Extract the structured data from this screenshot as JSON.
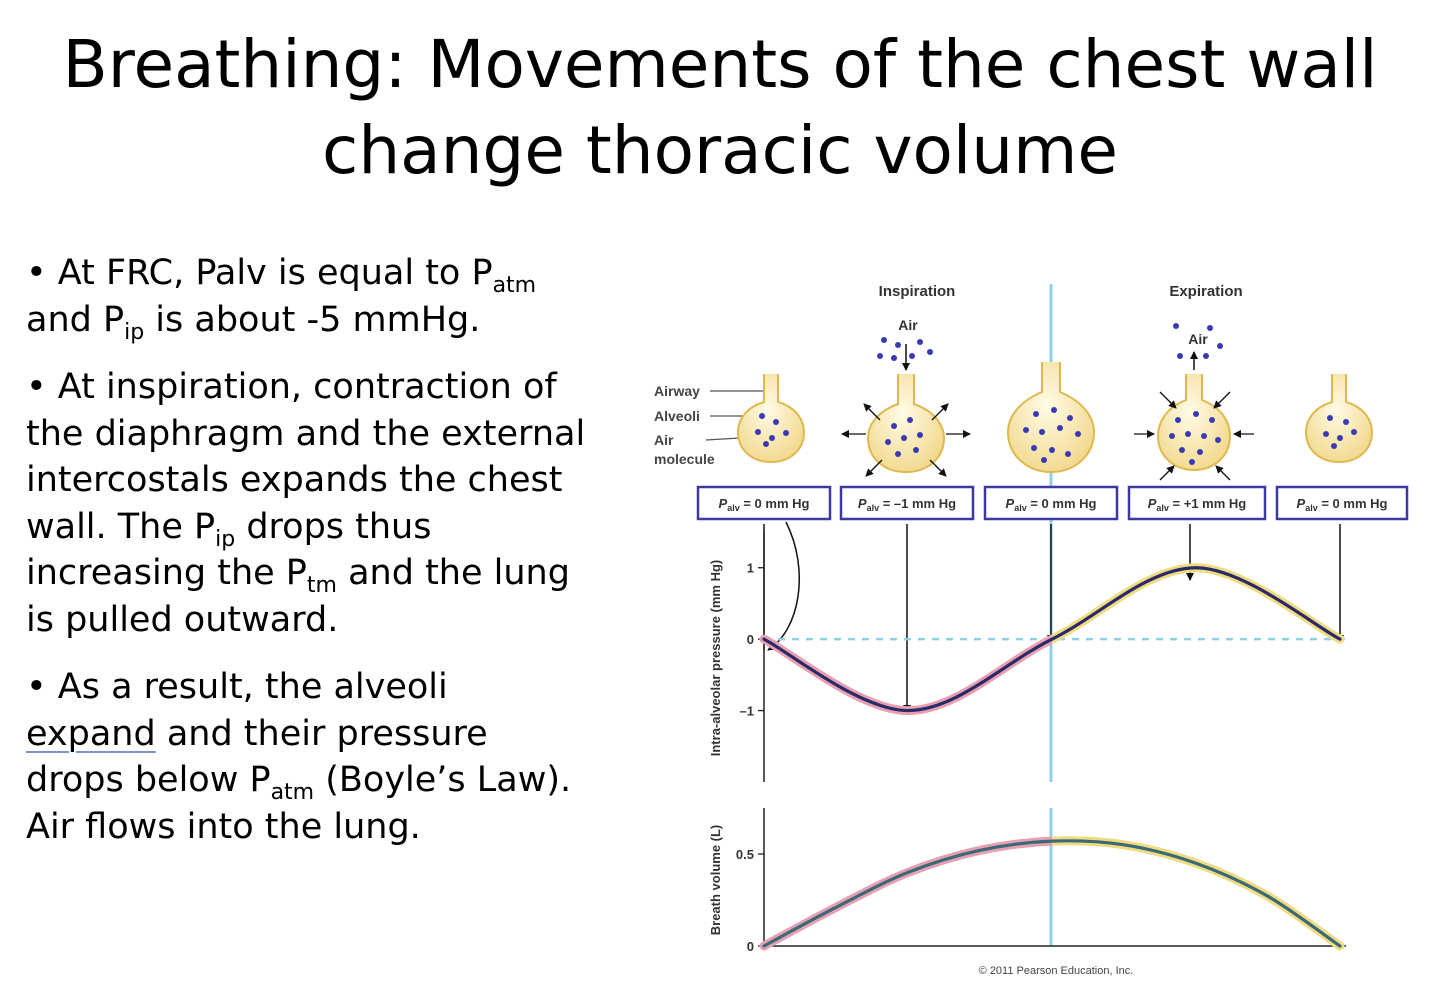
{
  "title": {
    "line1": "Breathing: Movements of the chest wall",
    "line2": "change thoracic volume"
  },
  "bullets": [
    {
      "a": "• At FRC, Palv is equal to  P",
      "b": "atm",
      "c": " and P",
      "d": "ip",
      "e": " is about -5 mmHg."
    },
    {
      "a": "• At inspiration, contraction of the diaphragm and the external intercostals expands the chest wall. The P",
      "b": "ip",
      "c": " drops thus increasing the P",
      "d": "tm",
      "e": " and the lung is pulled outward."
    },
    {
      "a": "• As a result, the alveoli ",
      "u": "expand",
      "b": " and their pressure drops below P",
      "c": "atm",
      "d": " (Boyle’s Law). Air flows into the lung."
    }
  ],
  "figure": {
    "phase_labels": [
      "Inspiration",
      "Expiration"
    ],
    "air_labels": [
      "Air",
      "Air"
    ],
    "structure_labels": [
      "Airway",
      "Alveoli",
      "Air",
      "molecule"
    ],
    "pressure_boxes": [
      {
        "p": "P",
        "sub": "alv",
        "val": " = 0 mm Hg"
      },
      {
        "p": "P",
        "sub": "alv",
        "val": " = –1 mm Hg"
      },
      {
        "p": "P",
        "sub": "alv",
        "val": " = 0 mm Hg"
      },
      {
        "p": "P",
        "sub": "alv",
        "val": " = +1 mm Hg"
      },
      {
        "p": "P",
        "sub": "alv",
        "val": " = 0 mm Hg"
      }
    ],
    "copyright": "© 2011 Pearson Education, Inc."
  },
  "chart_data": [
    {
      "type": "line",
      "ylabel": "Intra-alveolar pressure (mm Hg)",
      "yticks": [
        "1",
        "0",
        "–1"
      ],
      "ylim": [
        -2,
        1.5
      ],
      "x": [
        0,
        0.25,
        0.5,
        0.75,
        1.0
      ],
      "series": [
        {
          "values": [
            0,
            -1,
            0,
            1,
            0
          ]
        }
      ],
      "reference_line": 0,
      "colors": {
        "inspiration": "#e8a0b0",
        "expiration": "#f0dc80",
        "line": "#2a2a6a"
      }
    },
    {
      "type": "line",
      "ylabel": "Breath volume (L)",
      "yticks": [
        "0.5",
        "0"
      ],
      "ylim": [
        0,
        0.75
      ],
      "x": [
        0,
        0.125,
        0.25,
        0.375,
        0.5,
        0.625,
        0.75,
        0.875,
        1.0
      ],
      "series": [
        {
          "values": [
            0,
            0.21,
            0.4,
            0.52,
            0.57,
            0.55,
            0.45,
            0.27,
            0
          ]
        }
      ],
      "colors": {
        "inspiration": "#e8a0b0",
        "expiration": "#f0dc80",
        "line": "#3a6a7a"
      }
    }
  ]
}
